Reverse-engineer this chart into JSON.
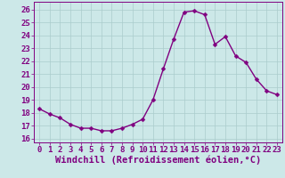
{
  "x": [
    0,
    1,
    2,
    3,
    4,
    5,
    6,
    7,
    8,
    9,
    10,
    11,
    12,
    13,
    14,
    15,
    16,
    17,
    18,
    19,
    20,
    21,
    22,
    23
  ],
  "y": [
    18.3,
    17.9,
    17.6,
    17.1,
    16.8,
    16.8,
    16.6,
    16.6,
    16.8,
    17.1,
    17.5,
    19.0,
    21.4,
    23.7,
    25.8,
    25.9,
    25.6,
    23.3,
    23.9,
    22.4,
    21.9,
    20.6,
    19.7,
    19.4
  ],
  "line_color": "#800080",
  "marker": "D",
  "marker_size": 2.5,
  "line_width": 1.0,
  "bg_color": "#cce8e8",
  "grid_color": "#aacccc",
  "xlabel": "Windchill (Refroidissement éolien,°C)",
  "xlabel_fontsize": 7.5,
  "ylabel_ticks": [
    16,
    17,
    18,
    19,
    20,
    21,
    22,
    23,
    24,
    25,
    26
  ],
  "xlim": [
    -0.5,
    23.5
  ],
  "ylim": [
    15.7,
    26.6
  ],
  "xtick_labels": [
    "0",
    "1",
    "2",
    "3",
    "4",
    "5",
    "6",
    "7",
    "8",
    "9",
    "10",
    "11",
    "12",
    "13",
    "14",
    "15",
    "16",
    "17",
    "18",
    "19",
    "20",
    "21",
    "22",
    "23"
  ],
  "tick_color": "#800080",
  "tick_fontsize": 6.5
}
